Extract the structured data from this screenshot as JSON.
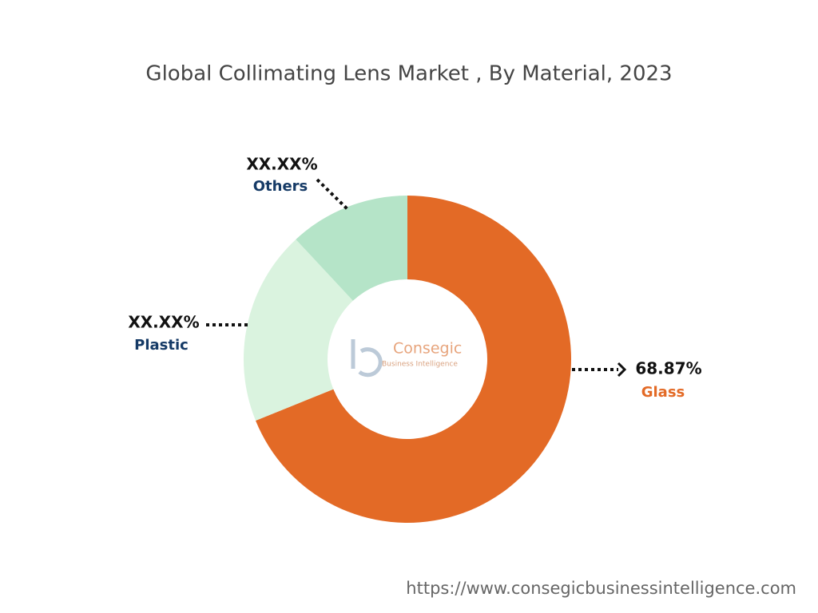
{
  "chart_data": {
    "type": "donut",
    "title": "Global Collimating Lens Market , By Material, 2023",
    "categories": [
      "Glass",
      "Plastic",
      "Others"
    ],
    "values": [
      68.87,
      19.2,
      11.93
    ],
    "value_labels": [
      "68.87%",
      "XX.XX%",
      "XX.XX%"
    ],
    "colors": [
      "#e36a26",
      "#daf3df",
      "#b5e4c8"
    ],
    "label_colors": [
      "#e36a26",
      "#153a66",
      "#153a66"
    ],
    "watermark": {
      "name": "Consegic",
      "tagline": "Business Intelligence"
    },
    "source_url": "https://www.consegicbusinessintelligence.com"
  }
}
